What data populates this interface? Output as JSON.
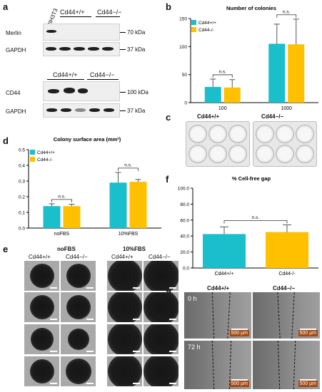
{
  "panels": {
    "a": "a",
    "b": "b",
    "c": "c",
    "d": "d",
    "e": "e",
    "f": "f",
    "g": "g"
  },
  "blot_top": {
    "lanes": [
      "NIH3T3",
      "Cd44+/+",
      "Cd44−/−"
    ],
    "rows": [
      "Merlin",
      "GAPDH"
    ],
    "markers": [
      "70 kDa",
      "37 kDa"
    ]
  },
  "blot_bottom": {
    "lanes": [
      "Cd44+/+",
      "Cd44−/−"
    ],
    "rows": [
      "CD44",
      "GAPDH"
    ],
    "markers": [
      "100 kDa",
      "37 kDa"
    ]
  },
  "plate_labels": [
    "Cd44+/+",
    "Cd44−/−"
  ],
  "spheroid_panel": {
    "conditions": [
      "noFBS",
      "10%FBS"
    ],
    "genotypes": [
      "Cd44+/+",
      "Cd44−/−",
      "Cd44+/+",
      "Cd44−/−"
    ]
  },
  "wound_panel": {
    "genotypes": [
      "Cd44+/+",
      "Cd44−/−"
    ],
    "times": [
      "0 h",
      "72 h"
    ],
    "scale": "500 µm"
  },
  "chart_data": [
    {
      "panel": "b",
      "type": "bar",
      "title": "Number of colonies",
      "categories": [
        "100",
        "1000"
      ],
      "series": [
        {
          "name": "Cd44+/+",
          "color": "#1bbecb",
          "values": [
            28,
            105
          ],
          "errors": [
            14,
            35
          ]
        },
        {
          "name": "Cd44-/-",
          "color": "#ffc000",
          "values": [
            27,
            104
          ],
          "errors": [
            14,
            45
          ]
        }
      ],
      "significance": [
        "n.s.",
        "n.s."
      ],
      "ylim": [
        0,
        150
      ],
      "yticks": [
        "0",
        "50",
        "100",
        "150"
      ],
      "legend": "top-left"
    },
    {
      "panel": "d",
      "type": "bar",
      "title": "Colony surface area (mm²)",
      "categories": [
        "noFBS",
        "10%FBS"
      ],
      "series": [
        {
          "name": "Cd44+/+",
          "color": "#1bbecb",
          "values": [
            0.14,
            0.29
          ],
          "errors": [
            0.015,
            0.065
          ]
        },
        {
          "name": "Cd44-/-",
          "color": "#ffc000",
          "values": [
            0.14,
            0.295
          ],
          "errors": [
            0.012,
            0.015
          ]
        }
      ],
      "significance": [
        "n.s.",
        "n.s."
      ],
      "ylim": [
        0,
        0.5
      ],
      "yticks": [
        "0.0",
        "0.1",
        "0.2",
        "0.3",
        "0.4",
        "0.5"
      ],
      "legend": "top-left"
    },
    {
      "panel": "f",
      "type": "bar",
      "title": "% Cell-free gap",
      "categories": [
        "Cd44+/+",
        "Cd44-/-"
      ],
      "series": [
        {
          "name": "",
          "values": [
            42.5,
            45
          ],
          "errors": [
            9,
            9
          ],
          "colors": [
            "#1bbecb",
            "#ffc000"
          ]
        }
      ],
      "significance": [
        "n.s."
      ],
      "ylim": [
        0,
        100
      ],
      "yticks": [
        "0.0",
        "20.0",
        "40.0",
        "60.0",
        "80.0",
        "100.0"
      ]
    }
  ]
}
